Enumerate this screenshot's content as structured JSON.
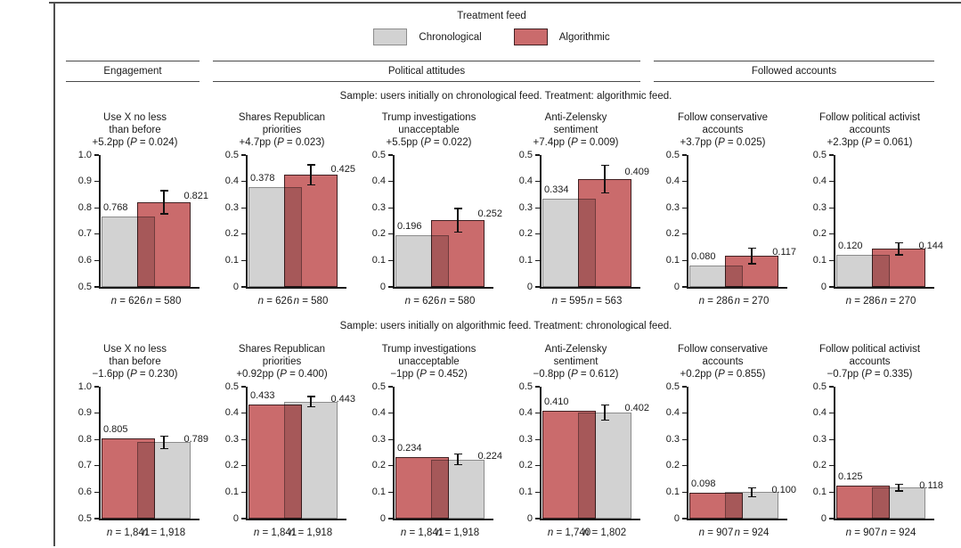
{
  "legend": {
    "title": "Treatment feed",
    "items": [
      {
        "label": "Chronological",
        "fill": "#d2d2d2",
        "border": "#8c8c8c"
      },
      {
        "label": "Algorithmic",
        "fill": "#ca6b6c",
        "border": "#402022"
      }
    ]
  },
  "column_groups": [
    {
      "label": "Engagement",
      "span": 1
    },
    {
      "label": "Political attitudes",
      "span": 3
    },
    {
      "label": "Followed accounts",
      "span": 2
    }
  ],
  "chart_data": {
    "type": "bar",
    "grid": false,
    "legend_position": "top",
    "feed_colors": {
      "Chronological": {
        "fill": "#d2d2d2",
        "border": "#8c8c8c"
      },
      "Algorithmic": {
        "fill": "#ca6b6c",
        "border": "#402022"
      }
    },
    "rows": [
      {
        "caption": "Sample: users initially on chronological feed. Treatment: algorithmic feed.",
        "panels": [
          {
            "title": "Use X no less\nthan before",
            "effect": "+5.2pp (P = 0.024)",
            "ylim": [
              0.5,
              1.0
            ],
            "yticks": [
              "0.5",
              "0.6",
              "0.7",
              "0.8",
              "0.9",
              "1.0"
            ],
            "bars": [
              {
                "feed": "Chronological",
                "value": 0.768,
                "label": "0.768",
                "n": "n = 626"
              },
              {
                "feed": "Algorithmic",
                "value": 0.821,
                "label": "0.821",
                "n": "n = 580",
                "ci": [
                  0.775,
                  0.867
                ]
              }
            ]
          },
          {
            "title": "Shares Republican\npriorities",
            "effect": "+4.7pp (P = 0.023)",
            "ylim": [
              0,
              0.5
            ],
            "yticks": [
              "0",
              "0.1",
              "0.2",
              "0.3",
              "0.4",
              "0.5"
            ],
            "bars": [
              {
                "feed": "Chronological",
                "value": 0.378,
                "label": "0.378",
                "n": "n = 626"
              },
              {
                "feed": "Algorithmic",
                "value": 0.425,
                "label": "0.425",
                "n": "n = 580",
                "ci": [
                  0.385,
                  0.465
                ]
              }
            ]
          },
          {
            "title": "Trump investigations\nunacceptable",
            "effect": "+5.5pp (P = 0.022)",
            "ylim": [
              0,
              0.5
            ],
            "yticks": [
              "0",
              "0.1",
              "0.2",
              "0.3",
              "0.4",
              "0.5"
            ],
            "bars": [
              {
                "feed": "Chronological",
                "value": 0.196,
                "label": "0.196",
                "n": "n = 626"
              },
              {
                "feed": "Algorithmic",
                "value": 0.252,
                "label": "0.252",
                "n": "n = 580",
                "ci": [
                  0.205,
                  0.299
                ]
              }
            ]
          },
          {
            "title": "Anti-Zelensky\nsentiment",
            "effect": "+7.4pp (P = 0.009)",
            "ylim": [
              0,
              0.5
            ],
            "yticks": [
              "0",
              "0.1",
              "0.2",
              "0.3",
              "0.4",
              "0.5"
            ],
            "bars": [
              {
                "feed": "Chronological",
                "value": 0.334,
                "label": "0.334",
                "n": "n = 595"
              },
              {
                "feed": "Algorithmic",
                "value": 0.409,
                "label": "0.409",
                "n": "n = 563",
                "ci": [
                  0.354,
                  0.464
                ]
              }
            ]
          },
          {
            "title": "Follow conservative\naccounts",
            "effect": "+3.7pp (P = 0.025)",
            "ylim": [
              0,
              0.5
            ],
            "yticks": [
              "0",
              "0.1",
              "0.2",
              "0.3",
              "0.4",
              "0.5"
            ],
            "bars": [
              {
                "feed": "Chronological",
                "value": 0.08,
                "label": "0.080",
                "n": "n = 286"
              },
              {
                "feed": "Algorithmic",
                "value": 0.117,
                "label": "0.117",
                "n": "n = 270",
                "ci": [
                  0.085,
                  0.149
                ]
              }
            ]
          },
          {
            "title": "Follow political activist\naccounts",
            "effect": "+2.3pp (P = 0.061)",
            "ylim": [
              0,
              0.5
            ],
            "yticks": [
              "0",
              "0.1",
              "0.2",
              "0.3",
              "0.4",
              "0.5"
            ],
            "bars": [
              {
                "feed": "Chronological",
                "value": 0.12,
                "label": "0.120",
                "n": "n = 286"
              },
              {
                "feed": "Algorithmic",
                "value": 0.144,
                "label": "0.144",
                "n": "n = 270",
                "ci": [
                  0.119,
                  0.169
                ]
              }
            ]
          }
        ]
      },
      {
        "caption": "Sample: users initially on algorithmic feed. Treatment: chronological feed.",
        "panels": [
          {
            "title": "Use X no less\nthan before",
            "effect": "−1.6pp (P = 0.230)",
            "ylim": [
              0.5,
              1.0
            ],
            "yticks": [
              "0.5",
              "0.6",
              "0.7",
              "0.8",
              "0.9",
              "1.0"
            ],
            "bars": [
              {
                "feed": "Algorithmic",
                "value": 0.805,
                "label": "0.805",
                "n": "n = 1,841"
              },
              {
                "feed": "Chronological",
                "value": 0.789,
                "label": "0.789",
                "n": "n = 1,918",
                "ci": [
                  0.763,
                  0.815
                ]
              }
            ]
          },
          {
            "title": "Shares Republican\npriorities",
            "effect": "+0.92pp (P = 0.400)",
            "ylim": [
              0,
              0.5
            ],
            "yticks": [
              "0",
              "0.1",
              "0.2",
              "0.3",
              "0.4",
              "0.5"
            ],
            "bars": [
              {
                "feed": "Algorithmic",
                "value": 0.433,
                "label": "0.433",
                "n": "n = 1,841"
              },
              {
                "feed": "Chronological",
                "value": 0.443,
                "label": "0.443",
                "n": "n = 1,918",
                "ci": [
                  0.421,
                  0.465
                ]
              }
            ]
          },
          {
            "title": "Trump investigations\nunacceptable",
            "effect": "−1pp (P = 0.452)",
            "ylim": [
              0,
              0.5
            ],
            "yticks": [
              "0",
              "0.1",
              "0.2",
              "0.3",
              "0.4",
              "0.5"
            ],
            "bars": [
              {
                "feed": "Algorithmic",
                "value": 0.234,
                "label": "0.234",
                "n": "n = 1,841"
              },
              {
                "feed": "Chronological",
                "value": 0.224,
                "label": "0.224",
                "n": "n = 1,918",
                "ci": [
                  0.201,
                  0.247
                ]
              }
            ]
          },
          {
            "title": "Anti-Zelensky\nsentiment",
            "effect": "−0.8pp (P = 0.612)",
            "ylim": [
              0,
              0.5
            ],
            "yticks": [
              "0",
              "0.1",
              "0.2",
              "0.3",
              "0.4",
              "0.5"
            ],
            "bars": [
              {
                "feed": "Algorithmic",
                "value": 0.41,
                "label": "0.410",
                "n": "n = 1,740"
              },
              {
                "feed": "Chronological",
                "value": 0.402,
                "label": "0.402",
                "n": "n = 1,802",
                "ci": [
                  0.371,
                  0.433
                ]
              }
            ]
          },
          {
            "title": "Follow conservative\naccounts",
            "effect": "+0.2pp (P = 0.855)",
            "ylim": [
              0,
              0.5
            ],
            "yticks": [
              "0",
              "0.1",
              "0.2",
              "0.3",
              "0.4",
              "0.5"
            ],
            "bars": [
              {
                "feed": "Algorithmic",
                "value": 0.098,
                "label": "0.098",
                "n": "n = 907"
              },
              {
                "feed": "Chronological",
                "value": 0.1,
                "label": "0.100",
                "n": "n = 924",
                "ci": [
                  0.081,
                  0.119
                ]
              }
            ]
          },
          {
            "title": "Follow political activist\naccounts",
            "effect": "−0.7pp (P = 0.335)",
            "ylim": [
              0,
              0.5
            ],
            "yticks": [
              "0",
              "0.1",
              "0.2",
              "0.3",
              "0.4",
              "0.5"
            ],
            "bars": [
              {
                "feed": "Algorithmic",
                "value": 0.125,
                "label": "0.125",
                "n": "n = 907"
              },
              {
                "feed": "Chronological",
                "value": 0.118,
                "label": "0.118",
                "n": "n = 924",
                "ci": [
                  0.103,
                  0.133
                ]
              }
            ]
          }
        ]
      }
    ]
  }
}
